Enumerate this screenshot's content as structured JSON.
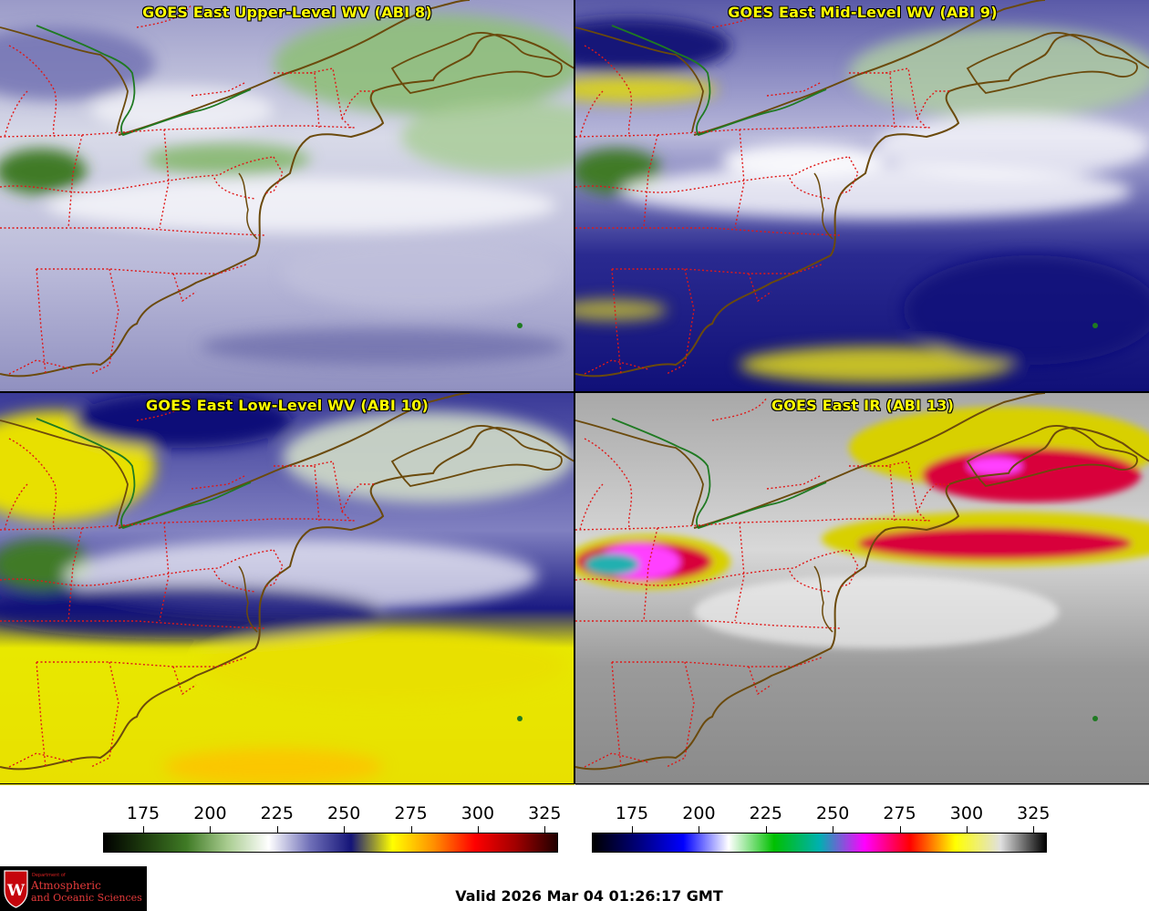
{
  "panels": {
    "upper": {
      "title": "GOES East Upper-Level WV (ABI 8)"
    },
    "mid": {
      "title": "GOES East Mid-Level WV (ABI 9)"
    },
    "low": {
      "title": "GOES East Low-Level WV (ABI 10)"
    },
    "ir": {
      "title": "GOES East IR (ABI 13)"
    }
  },
  "colorbar_wv": {
    "ticks": [
      "175",
      "200",
      "225",
      "250",
      "275",
      "300",
      "325"
    ],
    "colors": [
      "#000000",
      "#1e3d0e",
      "#3f7a25",
      "#a9cc90",
      "#ffffff",
      "#7070b8",
      "#141478",
      "#ffff00",
      "#ff9000",
      "#ff0000",
      "#a00000",
      "#200000"
    ]
  },
  "colorbar_ir": {
    "ticks": [
      "175",
      "200",
      "225",
      "250",
      "275",
      "300",
      "325"
    ],
    "colors": [
      "#000000",
      "#00007a",
      "#0000ff",
      "#ffffff",
      "#00c000",
      "#00b0b0",
      "#ff00ff",
      "#ff0000",
      "#ffff00",
      "#e0e0e0",
      "#000000"
    ]
  },
  "logo": {
    "dept": "Department of",
    "line1": "Atmospheric",
    "line2": "and Oceanic Sciences",
    "letter": "W"
  },
  "valid_time": "Valid 2026 Mar 04 01:26:17 GMT"
}
